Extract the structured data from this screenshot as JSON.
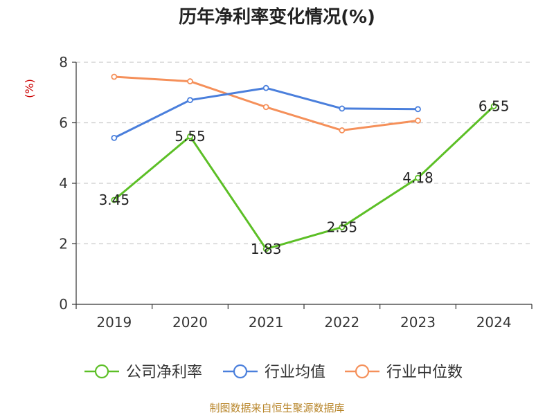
{
  "chart_data": {
    "type": "line",
    "title": "历年净利率变化情况(%)",
    "ylabel": "(%)",
    "xlabel": "",
    "categories": [
      "2019",
      "2020",
      "2021",
      "2022",
      "2023",
      "2024"
    ],
    "ylim": [
      0,
      8
    ],
    "yticks": [
      0,
      2,
      4,
      6,
      8
    ],
    "grid": true,
    "legend_position": "bottom",
    "series": [
      {
        "name": "公司净利率",
        "color": "#5cbf26",
        "show_labels": true,
        "values": [
          3.45,
          5.55,
          1.83,
          2.55,
          4.18,
          6.55
        ],
        "labels": [
          "3.45",
          "5.55",
          "1.83",
          "2.55",
          "4.18",
          "6.55"
        ]
      },
      {
        "name": "行业均值",
        "color": "#4a7fdc",
        "show_labels": false,
        "values": [
          5.5,
          6.75,
          7.15,
          6.47,
          6.45,
          null
        ]
      },
      {
        "name": "行业中位数",
        "color": "#f5905a",
        "show_labels": false,
        "values": [
          7.52,
          7.37,
          6.52,
          5.75,
          6.07,
          null
        ]
      }
    ]
  },
  "source": "制图数据来自恒生聚源数据库"
}
